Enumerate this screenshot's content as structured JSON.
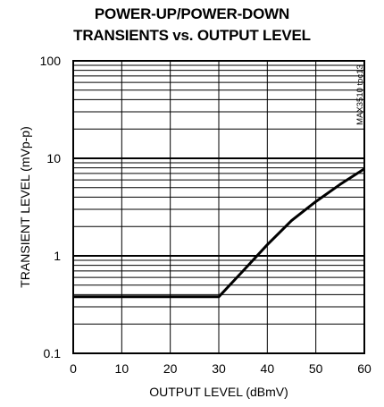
{
  "chart_data": {
    "type": "line",
    "title_line1": "POWER-UP/POWER-DOWN",
    "title_line2": "TRANSIENTS vs. OUTPUT LEVEL",
    "xlabel": "OUTPUT LEVEL (dBmV)",
    "ylabel": "TRANSIENT LEVEL (mVp-p)",
    "side_code": "MAX3510 toc13",
    "x_scale": "linear",
    "y_scale": "log",
    "xlim": [
      0,
      60
    ],
    "ylim": [
      0.1,
      100
    ],
    "x_ticks": [
      0,
      10,
      20,
      30,
      40,
      50,
      60
    ],
    "x_tick_labels": [
      "0",
      "10",
      "20",
      "30",
      "40",
      "50",
      "60"
    ],
    "y_ticks": [
      0.1,
      1,
      10,
      100
    ],
    "y_tick_labels": [
      "0.1",
      "1",
      "10",
      "100"
    ],
    "grid": true,
    "series": [
      {
        "x": [
          0,
          30,
          35,
          40,
          45,
          50,
          55,
          60
        ],
        "y": [
          0.38,
          0.38,
          0.7,
          1.3,
          2.3,
          3.6,
          5.4,
          7.8
        ],
        "color": "#000000"
      }
    ]
  }
}
